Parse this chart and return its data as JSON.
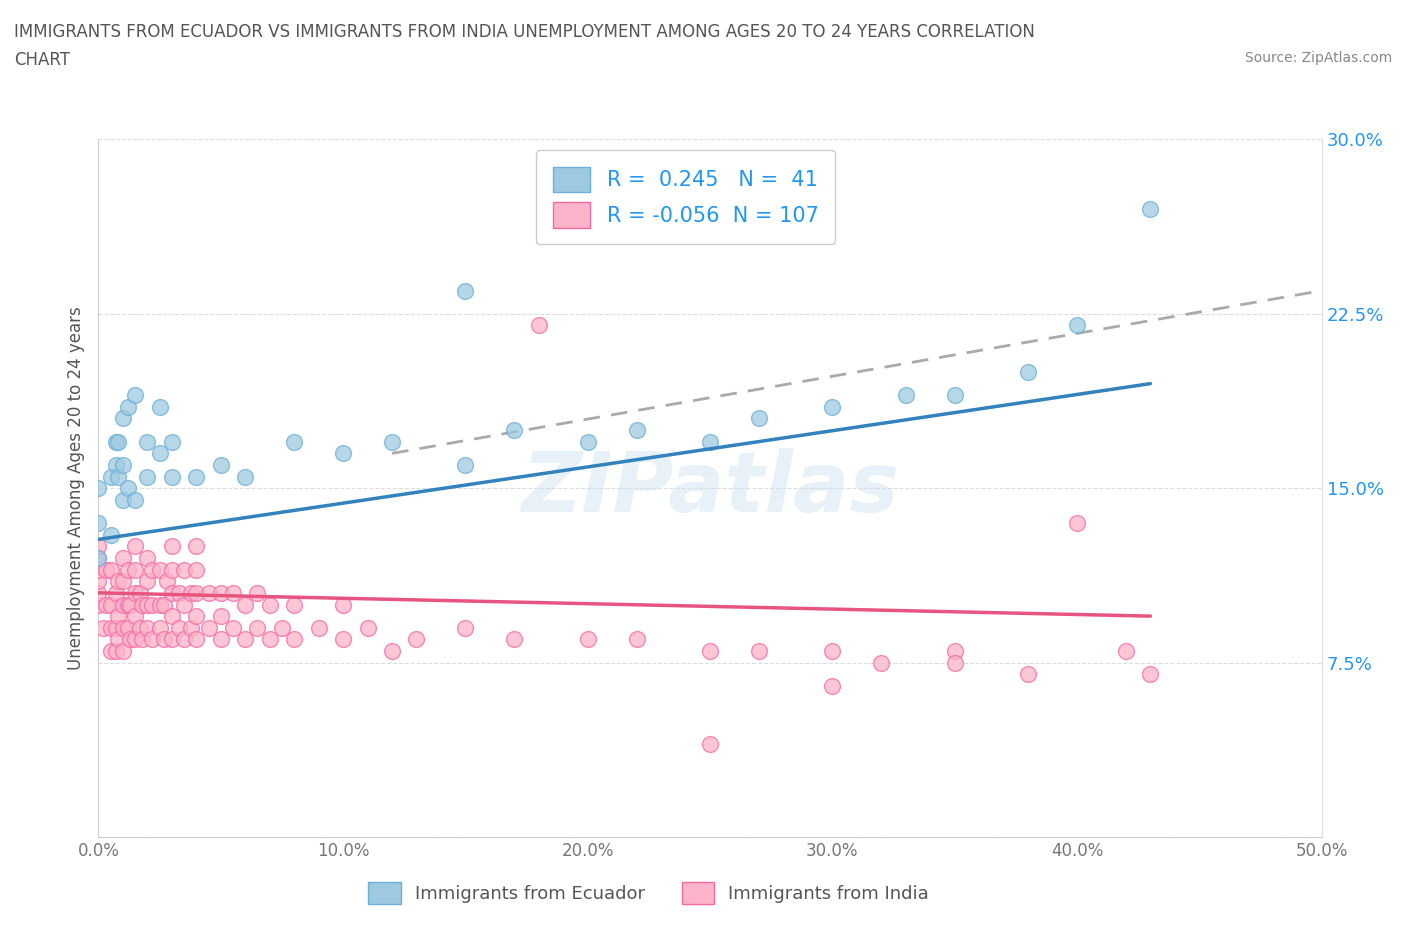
{
  "title_line1": "IMMIGRANTS FROM ECUADOR VS IMMIGRANTS FROM INDIA UNEMPLOYMENT AMONG AGES 20 TO 24 YEARS CORRELATION",
  "title_line2": "CHART",
  "source_text": "Source: ZipAtlas.com",
  "ylabel": "Unemployment Among Ages 20 to 24 years",
  "xlim": [
    0,
    0.5
  ],
  "ylim": [
    0,
    0.3
  ],
  "xticks": [
    0.0,
    0.1,
    0.2,
    0.3,
    0.4,
    0.5
  ],
  "yticks": [
    0.0,
    0.075,
    0.15,
    0.225,
    0.3
  ],
  "ecuador_color": "#9ecae1",
  "ecuador_edge_color": "#6baed6",
  "india_color": "#fbb4ca",
  "india_edge_color": "#f768a1",
  "trendline_ecuador_color": "#3182bd",
  "trendline_india_color": "#e75480",
  "ecuador_R": 0.245,
  "ecuador_N": 41,
  "india_R": -0.056,
  "india_N": 107,
  "watermark": "ZIPatlas",
  "legend_label_ecuador": "Immigrants from Ecuador",
  "legend_label_india": "Immigrants from India",
  "ecuador_scatter_x": [
    0.0,
    0.0,
    0.0,
    0.005,
    0.005,
    0.007,
    0.007,
    0.008,
    0.008,
    0.01,
    0.01,
    0.01,
    0.012,
    0.012,
    0.015,
    0.015,
    0.02,
    0.02,
    0.025,
    0.025,
    0.03,
    0.03,
    0.04,
    0.05,
    0.06,
    0.08,
    0.1,
    0.12,
    0.15,
    0.17,
    0.2,
    0.22,
    0.25,
    0.27,
    0.3,
    0.33,
    0.35,
    0.38,
    0.4,
    0.43,
    0.15
  ],
  "ecuador_scatter_y": [
    0.12,
    0.135,
    0.15,
    0.13,
    0.155,
    0.16,
    0.17,
    0.155,
    0.17,
    0.145,
    0.16,
    0.18,
    0.15,
    0.185,
    0.145,
    0.19,
    0.155,
    0.17,
    0.165,
    0.185,
    0.155,
    0.17,
    0.155,
    0.16,
    0.155,
    0.17,
    0.165,
    0.17,
    0.16,
    0.175,
    0.17,
    0.175,
    0.17,
    0.18,
    0.185,
    0.19,
    0.19,
    0.2,
    0.22,
    0.27,
    0.235
  ],
  "india_scatter_x": [
    0.0,
    0.0,
    0.0,
    0.0,
    0.0,
    0.0,
    0.002,
    0.003,
    0.003,
    0.005,
    0.005,
    0.005,
    0.005,
    0.007,
    0.007,
    0.007,
    0.008,
    0.008,
    0.008,
    0.01,
    0.01,
    0.01,
    0.01,
    0.01,
    0.012,
    0.012,
    0.012,
    0.013,
    0.013,
    0.015,
    0.015,
    0.015,
    0.015,
    0.015,
    0.017,
    0.017,
    0.018,
    0.018,
    0.02,
    0.02,
    0.02,
    0.02,
    0.022,
    0.022,
    0.022,
    0.025,
    0.025,
    0.025,
    0.027,
    0.027,
    0.028,
    0.03,
    0.03,
    0.03,
    0.03,
    0.03,
    0.033,
    0.033,
    0.035,
    0.035,
    0.035,
    0.038,
    0.038,
    0.04,
    0.04,
    0.04,
    0.04,
    0.04,
    0.045,
    0.045,
    0.05,
    0.05,
    0.05,
    0.055,
    0.055,
    0.06,
    0.06,
    0.065,
    0.065,
    0.07,
    0.07,
    0.075,
    0.08,
    0.08,
    0.09,
    0.1,
    0.1,
    0.11,
    0.12,
    0.13,
    0.15,
    0.17,
    0.18,
    0.2,
    0.22,
    0.25,
    0.27,
    0.3,
    0.32,
    0.35,
    0.38,
    0.4,
    0.42,
    0.43,
    0.25,
    0.3,
    0.35
  ],
  "india_scatter_y": [
    0.1,
    0.105,
    0.11,
    0.115,
    0.12,
    0.125,
    0.09,
    0.1,
    0.115,
    0.08,
    0.09,
    0.1,
    0.115,
    0.08,
    0.09,
    0.105,
    0.085,
    0.095,
    0.11,
    0.08,
    0.09,
    0.1,
    0.11,
    0.12,
    0.09,
    0.1,
    0.115,
    0.085,
    0.1,
    0.085,
    0.095,
    0.105,
    0.115,
    0.125,
    0.09,
    0.105,
    0.085,
    0.1,
    0.09,
    0.1,
    0.11,
    0.12,
    0.085,
    0.1,
    0.115,
    0.09,
    0.1,
    0.115,
    0.085,
    0.1,
    0.11,
    0.085,
    0.095,
    0.105,
    0.115,
    0.125,
    0.09,
    0.105,
    0.085,
    0.1,
    0.115,
    0.09,
    0.105,
    0.085,
    0.095,
    0.105,
    0.115,
    0.125,
    0.09,
    0.105,
    0.085,
    0.095,
    0.105,
    0.09,
    0.105,
    0.085,
    0.1,
    0.09,
    0.105,
    0.085,
    0.1,
    0.09,
    0.085,
    0.1,
    0.09,
    0.085,
    0.1,
    0.09,
    0.08,
    0.085,
    0.09,
    0.085,
    0.22,
    0.085,
    0.085,
    0.08,
    0.08,
    0.08,
    0.075,
    0.08,
    0.07,
    0.135,
    0.08,
    0.07,
    0.04,
    0.065,
    0.075
  ],
  "ecuador_trendline_x": [
    0.0,
    0.43
  ],
  "ecuador_trendline_y": [
    0.128,
    0.195
  ],
  "india_trendline_x": [
    0.0,
    0.43
  ],
  "india_trendline_y": [
    0.105,
    0.095
  ],
  "dash_trendline_x": [
    0.12,
    0.5
  ],
  "dash_trendline_y": [
    0.165,
    0.235
  ]
}
